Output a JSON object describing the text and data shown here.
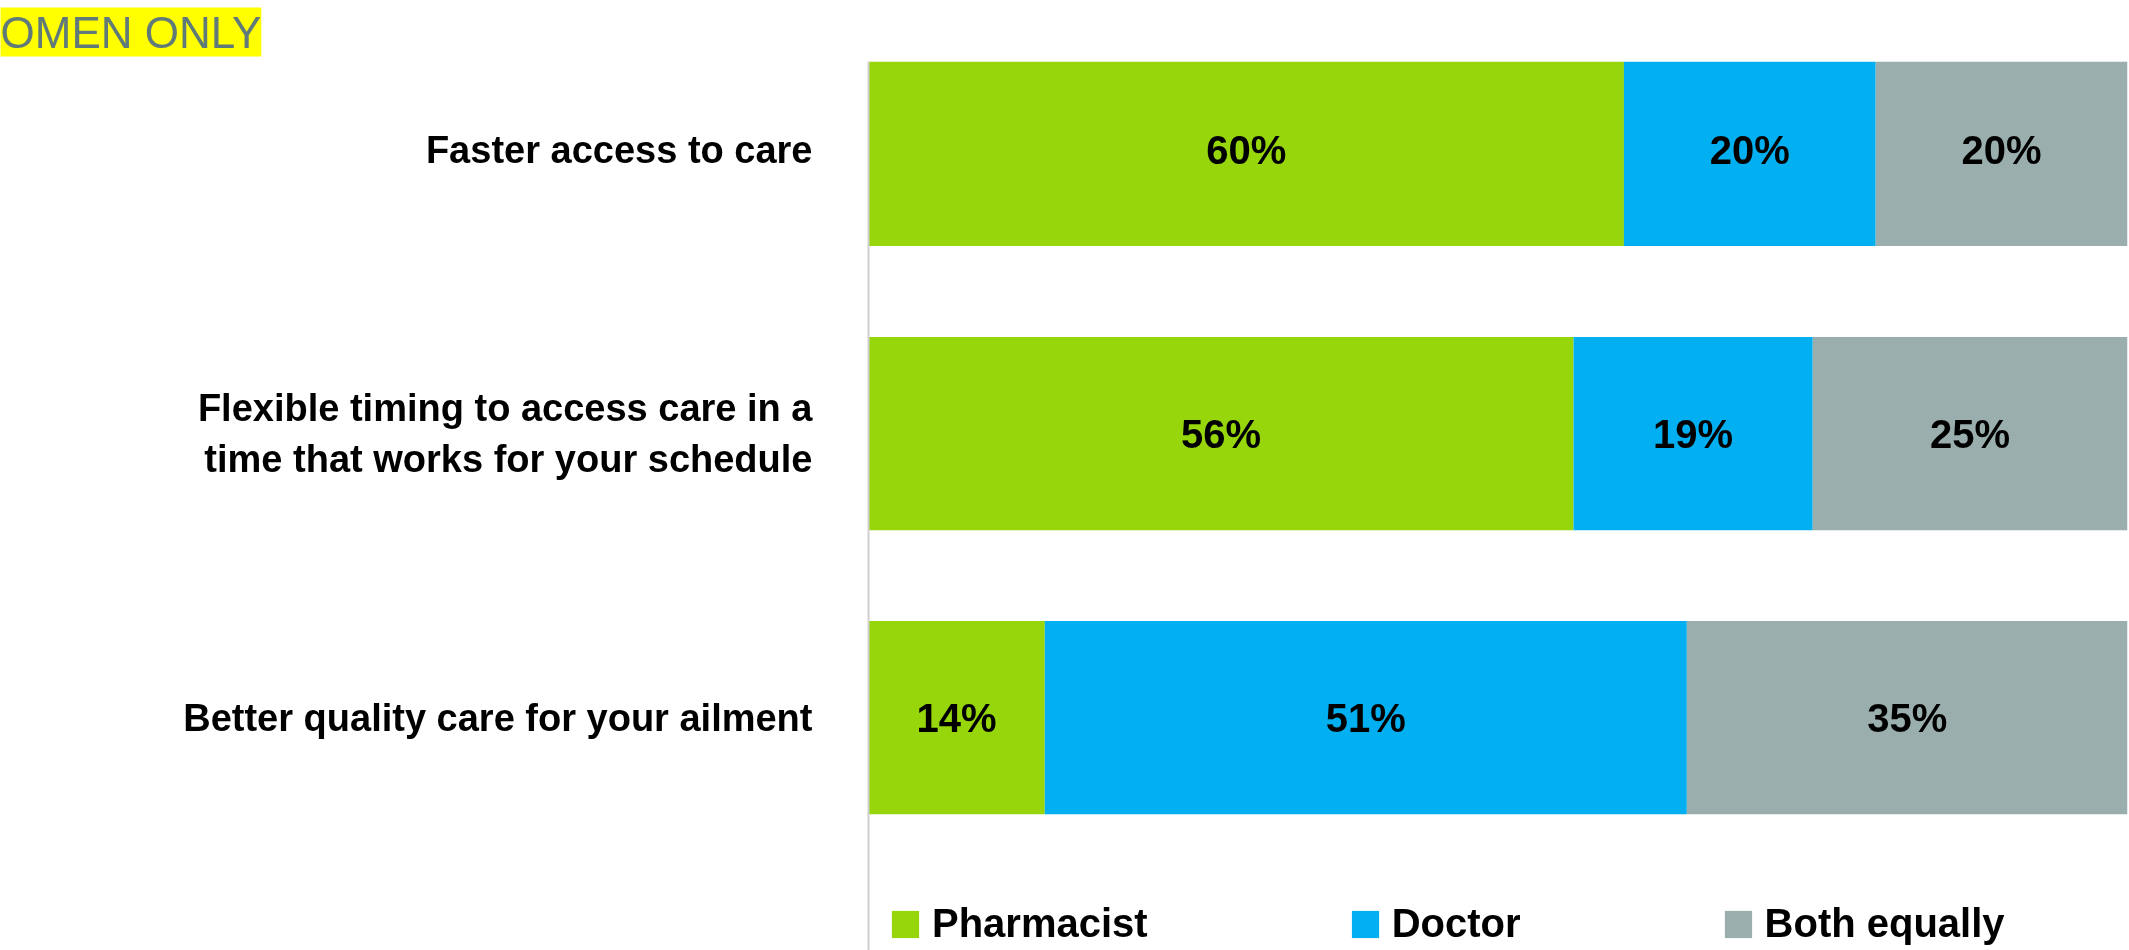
{
  "chart_data": {
    "type": "bar",
    "orientation": "horizontal",
    "stacked": true,
    "title": "OMEN ONLY",
    "categories": [
      "Faster access to care",
      "Flexible timing to access care in a time that works for your schedule",
      "Better quality care for your ailment"
    ],
    "series": [
      {
        "name": "Pharmacist",
        "color": "#96d60a",
        "values": [
          60,
          56,
          14
        ],
        "value_labels": [
          "60%",
          "56%",
          "14%"
        ]
      },
      {
        "name": "Doctor",
        "color": "#02aff0",
        "values": [
          20,
          19,
          51
        ],
        "value_labels": [
          "20%",
          "19%",
          "51%"
        ]
      },
      {
        "name": "Both equally",
        "color": "#9aafad",
        "values": [
          20,
          25,
          35
        ],
        "value_labels": [
          "20%",
          "25%",
          "35%"
        ]
      }
    ],
    "legend": "bottom",
    "tick_labels": "y"
  }
}
